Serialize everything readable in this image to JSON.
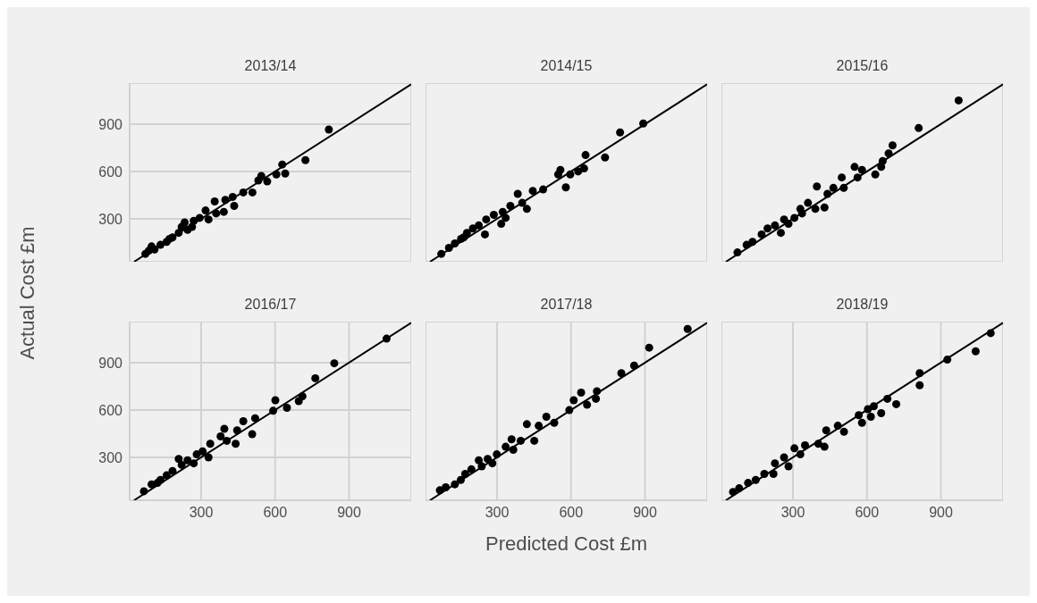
{
  "chart_data": [
    {
      "type": "scatter",
      "title": "2013/14",
      "ylabel": "Actual Cost £m",
      "xlim": [
        10,
        1152
      ],
      "ylim": [
        28,
        1160
      ],
      "xticks": [
        300,
        600,
        900
      ],
      "yticks": [
        300,
        600,
        900
      ],
      "grid": true,
      "tick_labels": "y",
      "series": [
        {
          "color": "#000000",
          "marker": "circle",
          "x": [
            818,
            723,
            629,
            641,
            605,
            544,
            532,
            568,
            508,
            471,
            428,
            434,
            398,
            355,
            392,
            361,
            318,
            330,
            294,
            270,
            233,
            245,
            209,
            184,
            160,
            135,
            99,
            111,
            74,
            87,
            172,
            263,
            221
          ],
          "values": [
            866,
            672,
            644,
            587,
            581,
            572,
            543,
            537,
            467,
            467,
            439,
            382,
            420,
            410,
            344,
            334,
            353,
            296,
            306,
            287,
            277,
            230,
            211,
            182,
            154,
            135,
            125,
            106,
            78,
            97,
            173,
            249,
            249
          ]
        },
        {
          "type": "line",
          "color": "#000000",
          "x": [
            28,
            1152
          ],
          "values": [
            28,
            1152
          ]
        }
      ]
    },
    {
      "type": "scatter",
      "title": "2014/15",
      "xlim": [
        10,
        1152
      ],
      "ylim": [
        28,
        1160
      ],
      "xticks": [
        300,
        600,
        900
      ],
      "yticks": [
        300,
        600,
        900
      ],
      "grid": true,
      "tick_labels": false,
      "series": [
        {
          "color": "#000000",
          "marker": "circle",
          "x": [
            893,
            799,
            738,
            659,
            653,
            629,
            597,
            579,
            557,
            548,
            487,
            445,
            421,
            384,
            402,
            354,
            323,
            317,
            287,
            256,
            226,
            251,
            178,
            154,
            129,
            105,
            74,
            202,
            335,
            165
          ],
          "values": [
            904,
            847,
            689,
            704,
            619,
            600,
            581,
            499,
            610,
            581,
            486,
            477,
            363,
            458,
            401,
            382,
            344,
            268,
            325,
            296,
            258,
            201,
            211,
            173,
            144,
            116,
            78,
            239,
            306,
            182
          ]
        },
        {
          "type": "line",
          "color": "#000000",
          "x": [
            28,
            1152
          ],
          "values": [
            28,
            1152
          ]
        }
      ]
    },
    {
      "type": "scatter",
      "title": "2015/16",
      "xlim": [
        10,
        1152
      ],
      "ylim": [
        28,
        1160
      ],
      "xticks": [
        300,
        600,
        900
      ],
      "yticks": [
        300,
        600,
        900
      ],
      "grid": true,
      "tick_labels": false,
      "series": [
        {
          "color": "#000000",
          "marker": "circle",
          "x": [
            972,
            810,
            704,
            688,
            664,
            658,
            634,
            580,
            550,
            562,
            498,
            506,
            464,
            428,
            397,
            440,
            391,
            361,
            330,
            306,
            264,
            251,
            227,
            197,
            173,
            136,
            112,
            75,
            282,
            337
          ],
          "values": [
            1050,
            875,
            765,
            714,
            666,
            629,
            581,
            610,
            629,
            562,
            562,
            496,
            496,
            372,
            505,
            458,
            363,
            401,
            363,
            306,
            296,
            211,
            258,
            239,
            201,
            154,
            135,
            87,
            268,
            334
          ]
        },
        {
          "type": "line",
          "color": "#000000",
          "x": [
            28,
            1152
          ],
          "values": [
            28,
            1152
          ]
        }
      ]
    },
    {
      "type": "scatter",
      "title": "2016/17",
      "xlim": [
        10,
        1152
      ],
      "ylim": [
        28,
        1160
      ],
      "xticks": [
        300,
        600,
        900
      ],
      "yticks": [
        300,
        600,
        900
      ],
      "grid": true,
      "series": [
        {
          "color": "#000000",
          "marker": "circle",
          "x": [
            1052,
            840,
            763,
            711,
            696,
            648,
            601,
            592,
            519,
            507,
            471,
            446,
            440,
            394,
            379,
            404,
            337,
            330,
            306,
            282,
            245,
            221,
            184,
            160,
            135,
            99,
            68,
            209,
            270,
            123
          ],
          "values": [
            1052,
            896,
            801,
            687,
            656,
            614,
            662,
            595,
            548,
            447,
            529,
            471,
            386,
            481,
            433,
            405,
            386,
            300,
            338,
            319,
            281,
            252,
            214,
            186,
            157,
            129,
            85,
            290,
            262,
            138
          ]
        },
        {
          "type": "line",
          "color": "#000000",
          "x": [
            28,
            1152
          ],
          "values": [
            28,
            1152
          ]
        }
      ]
    },
    {
      "type": "scatter",
      "title": "2017/18",
      "xlabel": "Predicted Cost £m",
      "xlim": [
        10,
        1152
      ],
      "ylim": [
        28,
        1160
      ],
      "xticks": [
        300,
        600,
        900
      ],
      "yticks": [
        300,
        600,
        900
      ],
      "grid": true,
      "tick_labels": "x",
      "series": [
        {
          "color": "#000000",
          "marker": "circle",
          "x": [
            1073,
            917,
            856,
            804,
            705,
            701,
            665,
            641,
            611,
            593,
            532,
            500,
            469,
            421,
            451,
            396,
            359,
            366,
            335,
            299,
            262,
            226,
            238,
            196,
            171,
            153,
            129,
            92,
            68,
            281
          ],
          "values": [
            1113,
            995,
            881,
            833,
            719,
            671,
            633,
            710,
            662,
            599,
            519,
            557,
            500,
            510,
            405,
            405,
            414,
            348,
            367,
            319,
            290,
            281,
            243,
            224,
            195,
            157,
            129,
            110,
            91,
            262
          ]
        },
        {
          "type": "line",
          "color": "#000000",
          "x": [
            28,
            1152
          ],
          "values": [
            28,
            1152
          ]
        }
      ]
    },
    {
      "type": "scatter",
      "title": "2018/19",
      "xlim": [
        10,
        1152
      ],
      "ylim": [
        28,
        1160
      ],
      "xticks": [
        300,
        600,
        900
      ],
      "yticks": [
        300,
        600,
        900
      ],
      "grid": true,
      "tick_labels": "x",
      "series": [
        {
          "color": "#000000",
          "marker": "circle",
          "x": [
            1102,
            1041,
            926,
            814,
            814,
            683,
            719,
            658,
            628,
            604,
            616,
            567,
            580,
            507,
            482,
            435,
            428,
            403,
            349,
            330,
            306,
            282,
            264,
            227,
            221,
            184,
            149,
            118,
            82,
            57
          ],
          "values": [
            1087,
            972,
            919,
            833,
            757,
            671,
            637,
            580,
            624,
            605,
            557,
            567,
            519,
            462,
            500,
            471,
            367,
            386,
            376,
            319,
            357,
            243,
            300,
            262,
            195,
            195,
            157,
            138,
            104,
            81
          ]
        },
        {
          "type": "line",
          "color": "#000000",
          "x": [
            28,
            1152
          ],
          "values": [
            28,
            1152
          ]
        }
      ]
    }
  ]
}
